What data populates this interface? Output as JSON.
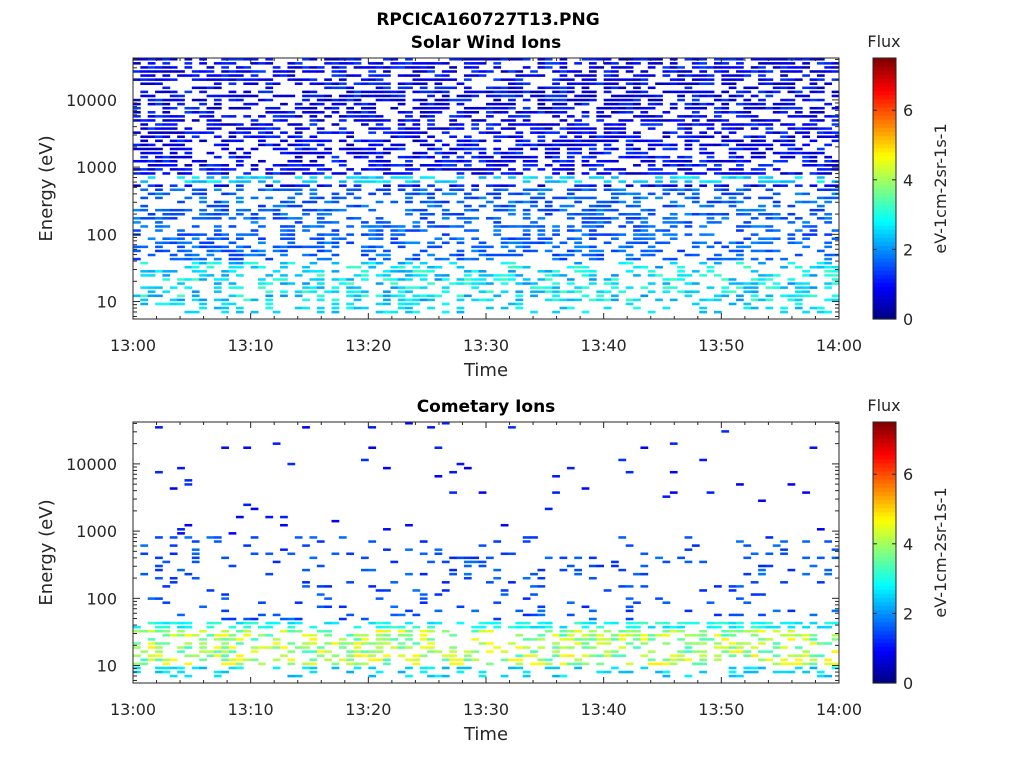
{
  "figure_title": "RPCICA160727T13.PNG",
  "colors": {
    "colormap": "jet",
    "axis": "#262626",
    "background": "#ffffff"
  },
  "chart_data": [
    {
      "type": "heatmap",
      "title": "Solar Wind Ions",
      "xlabel": "Time",
      "ylabel": "Energy (eV)",
      "x_ticks": [
        "13:00",
        "13:10",
        "13:20",
        "13:30",
        "13:40",
        "13:50",
        "14:00"
      ],
      "x_range": [
        "13:00",
        "14:00"
      ],
      "y_scale": "log",
      "y_range": [
        5.5,
        42000
      ],
      "y_ticks": [
        10,
        100,
        1000,
        10000
      ],
      "y_tick_labels": [
        "10",
        "100",
        "1000",
        "10000"
      ],
      "colorbar": {
        "title": "Flux",
        "label": "eV-1cm-2sr-1s-1",
        "range": [
          0,
          7.5
        ],
        "ticks": [
          "0",
          "2",
          "4",
          "6"
        ]
      },
      "grid": false,
      "bands": [
        {
          "energy_range": [
            6,
            9
          ],
          "time_range": [
            "13:00",
            "14:00"
          ],
          "flux_range": [
            2.2,
            3.0
          ],
          "coverage": 0.3
        },
        {
          "energy_range": [
            9,
            40
          ],
          "time_range": [
            "13:00",
            "14:00"
          ],
          "flux_range": [
            2.0,
            3.3
          ],
          "coverage": 0.45
        },
        {
          "energy_range": [
            40,
            500
          ],
          "time_range": [
            "13:00",
            "14:00"
          ],
          "flux_range": [
            1.3,
            2.0
          ],
          "coverage": 0.45
        },
        {
          "energy_range": [
            580,
            760
          ],
          "time_range": [
            "13:00",
            "14:00"
          ],
          "flux_range": [
            2.2,
            2.8
          ],
          "coverage": 0.55
        },
        {
          "energy_range": [
            500,
            40000
          ],
          "time_range": [
            "13:00",
            "14:00"
          ],
          "flux_range": [
            0.4,
            1.4
          ],
          "coverage": 0.6
        }
      ]
    },
    {
      "type": "heatmap",
      "title": "Cometary Ions",
      "xlabel": "Time",
      "ylabel": "Energy (eV)",
      "x_ticks": [
        "13:00",
        "13:10",
        "13:20",
        "13:30",
        "13:40",
        "13:50",
        "14:00"
      ],
      "x_range": [
        "13:00",
        "14:00"
      ],
      "y_scale": "log",
      "y_range": [
        5.5,
        42000
      ],
      "y_ticks": [
        10,
        100,
        1000,
        10000
      ],
      "y_tick_labels": [
        "10",
        "100",
        "1000",
        "10000"
      ],
      "colorbar": {
        "title": "Flux",
        "label": "eV-1cm-2sr-1s-1",
        "range": [
          0,
          7.5
        ],
        "ticks": [
          "0",
          "2",
          "4",
          "6"
        ]
      },
      "grid": false,
      "bands": [
        {
          "energy_range": [
            6,
            9
          ],
          "time_range": [
            "13:00",
            "14:00"
          ],
          "flux_range": [
            2.2,
            2.8
          ],
          "coverage": 0.3
        },
        {
          "energy_range": [
            9,
            32
          ],
          "time_range": [
            "13:00",
            "14:00"
          ],
          "flux_range": [
            3.2,
            4.8
          ],
          "coverage": 0.5
        },
        {
          "energy_range": [
            32,
            45
          ],
          "time_range": [
            "13:00",
            "14:00"
          ],
          "flux_range": [
            2.5,
            3.3
          ],
          "coverage": 0.5
        },
        {
          "energy_range": [
            45,
            800
          ],
          "time_range": [
            "13:00",
            "14:00"
          ],
          "flux_range": [
            1.2,
            1.8
          ],
          "coverage": 0.12
        },
        {
          "energy_range": [
            800,
            40000
          ],
          "time_range": [
            "13:00",
            "14:00"
          ],
          "flux_range": [
            0.8,
            1.3
          ],
          "coverage": 0.02
        }
      ]
    }
  ]
}
